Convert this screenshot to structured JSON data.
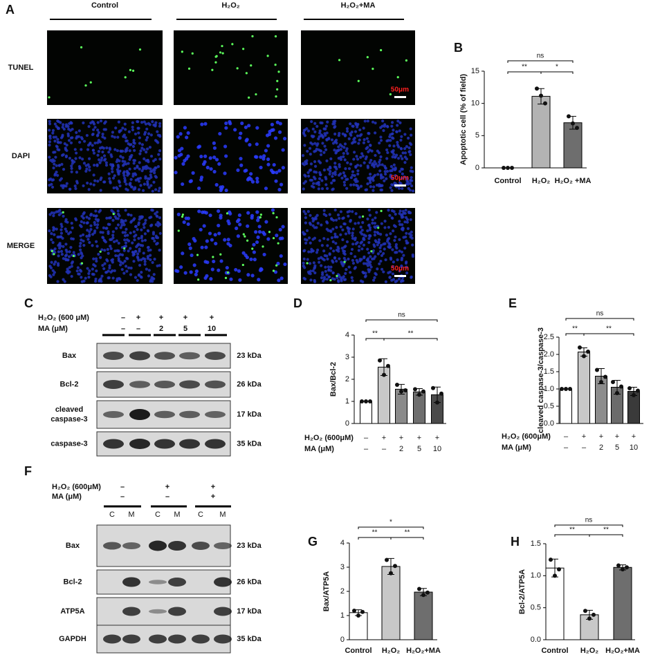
{
  "panel_a": {
    "letter": "A",
    "columns": [
      "Control",
      "H₂O₂",
      "H₂O₂+MA"
    ],
    "rows": [
      "TUNEL",
      "DAPI",
      "MERGE"
    ],
    "scale_bar": "50μm"
  },
  "panel_c": {
    "letter": "C",
    "conditions": [
      {
        "label": "H₂O₂ (600  μM)",
        "values": [
          "–",
          "+",
          "+",
          "+",
          "+"
        ]
      },
      {
        "label": "MA (μM)",
        "values": [
          "–",
          "–",
          "2",
          "5",
          "10"
        ]
      }
    ],
    "bands": [
      {
        "name": [
          "Bax"
        ],
        "size": "23 kDa"
      },
      {
        "name": [
          "Bcl-2"
        ],
        "size": "26 kDa"
      },
      {
        "name": [
          "cleaved",
          "caspase-3"
        ],
        "size": "17 kDa"
      },
      {
        "name": [
          "caspase-3"
        ],
        "size": "35 kDa"
      }
    ]
  },
  "panel_f": {
    "letter": "F",
    "conditions": [
      {
        "label": "H₂O₂  (600μM)",
        "values": [
          "–",
          "+",
          "+"
        ]
      },
      {
        "label": "MA    (μM)",
        "values": [
          "–",
          "–",
          "+"
        ]
      }
    ],
    "lanes": [
      "C",
      "M",
      "C",
      "M",
      "C",
      "M"
    ],
    "bands": [
      {
        "name": [
          "Bax"
        ],
        "size": "23 kDa"
      },
      {
        "name": [
          "Bcl-2"
        ],
        "size": "26 kDa"
      },
      {
        "name": [
          "ATP5A"
        ],
        "size": "17 kDa"
      },
      {
        "name": [
          "GAPDH"
        ],
        "size": "35 kDa"
      }
    ]
  },
  "chart_data": [
    {
      "panel": "B",
      "type": "bar",
      "ylabel": "Apoptotic cell (% of field)",
      "categories": [
        "Control",
        "H₂O₂",
        "H₂O₂ +MA"
      ],
      "values": [
        0,
        11.1,
        7.0
      ],
      "errors": [
        0,
        1.2,
        1.0
      ],
      "points": [
        [
          0,
          0,
          0
        ],
        [
          12.3,
          11.2,
          10.0
        ],
        [
          8.0,
          6.9,
          6.2
        ]
      ],
      "colors": [
        "#ffffff",
        "#b3b3b3",
        "#6e6e6e"
      ],
      "ylim": [
        0,
        15
      ],
      "yticks": [
        0,
        5,
        10,
        15
      ],
      "comparisons": [
        {
          "groups": [
            0,
            1
          ],
          "label": "**"
        },
        {
          "groups": [
            1,
            2
          ],
          "label": "*"
        },
        {
          "groups": [
            0,
            2
          ],
          "label": "ns"
        }
      ]
    },
    {
      "panel": "D",
      "type": "bar",
      "ylabel": "Bax/Bcl-2",
      "conditions": [
        {
          "label": "H₂O₂ (600μM)",
          "values": [
            "–",
            "+",
            "+",
            "+",
            "+"
          ]
        },
        {
          "label": "MA    (μM)",
          "values": [
            "–",
            "–",
            "2",
            "5",
            "10"
          ]
        }
      ],
      "values": [
        1.0,
        2.55,
        1.55,
        1.43,
        1.3
      ],
      "errors": [
        0,
        0.38,
        0.22,
        0.15,
        0.35
      ],
      "points": [
        [
          1.0,
          1.0,
          1.0
        ],
        [
          2.85,
          2.2,
          2.6
        ],
        [
          1.75,
          1.45,
          1.5
        ],
        [
          1.55,
          1.3,
          1.45
        ],
        [
          1.6,
          0.95,
          1.35
        ]
      ],
      "colors": [
        "#ffffff",
        "#c8c8c8",
        "#8a8a8a",
        "#6e6e6e",
        "#4a4a4a"
      ],
      "ylim": [
        0,
        4
      ],
      "yticks": [
        0,
        1,
        2,
        3,
        4
      ],
      "comparisons": [
        {
          "groups": [
            0,
            1
          ],
          "label": "**"
        },
        {
          "groups": [
            1,
            4
          ],
          "label": "**"
        },
        {
          "groups": [
            0,
            4
          ],
          "label": "ns"
        }
      ]
    },
    {
      "panel": "E",
      "type": "bar",
      "ylabel": "cleaved caspase-3/caspase-3",
      "conditions": [
        {
          "label": "H₂O₂  (600μM)",
          "values": [
            "–",
            "+",
            "+",
            "+",
            "+"
          ]
        },
        {
          "label": "MA    (μM)",
          "values": [
            "–",
            "–",
            "2",
            "5",
            "10"
          ]
        }
      ],
      "values": [
        1.0,
        2.07,
        1.37,
        1.05,
        0.93
      ],
      "errors": [
        0,
        0.12,
        0.22,
        0.2,
        0.12
      ],
      "points": [
        [
          1.0,
          1.0,
          1.0
        ],
        [
          2.2,
          1.95,
          2.08
        ],
        [
          1.55,
          1.2,
          1.35
        ],
        [
          1.2,
          0.88,
          1.07
        ],
        [
          1.02,
          0.82,
          0.95
        ]
      ],
      "colors": [
        "#ffffff",
        "#c8c8c8",
        "#8c8c8c",
        "#6b6b6b",
        "#3a3a3a"
      ],
      "ylim": [
        0,
        2.5
      ],
      "yticks": [
        {
          "value": 0,
          "label": "0.0"
        },
        0.5,
        {
          "value": 1,
          "label": "1.0"
        },
        1.5,
        {
          "value": 2,
          "label": "2.0"
        },
        2.5
      ],
      "comparisons": [
        {
          "groups": [
            0,
            1
          ],
          "label": "**"
        },
        {
          "groups": [
            1,
            4
          ],
          "label": "**"
        },
        {
          "groups": [
            0,
            4
          ],
          "label": "ns"
        }
      ]
    },
    {
      "panel": "G",
      "type": "bar",
      "ylabel": "Bax/ATP5A",
      "categories": [
        "Control",
        "H₂O₂",
        "H₂O₂+MA"
      ],
      "values": [
        1.12,
        3.03,
        1.97
      ],
      "errors": [
        0.12,
        0.33,
        0.15
      ],
      "points": [
        [
          1.2,
          1.0,
          1.15
        ],
        [
          3.3,
          2.75,
          3.05
        ],
        [
          2.1,
          1.85,
          1.95
        ]
      ],
      "colors": [
        "#ffffff",
        "#c8c8c8",
        "#6e6e6e"
      ],
      "ylim": [
        0,
        4
      ],
      "yticks": [
        0,
        1,
        2,
        3,
        4
      ],
      "comparisons": [
        {
          "groups": [
            0,
            1
          ],
          "label": "**"
        },
        {
          "groups": [
            1,
            2
          ],
          "label": "**"
        },
        {
          "groups": [
            0,
            2
          ],
          "label": "*"
        }
      ]
    },
    {
      "panel": "H",
      "type": "bar",
      "ylabel": "Bcl-2/ATP5A",
      "categories": [
        "Control",
        "H₂O₂",
        "H₂O₂+MA"
      ],
      "values": [
        1.12,
        0.39,
        1.13
      ],
      "errors": [
        0.14,
        0.07,
        0.04
      ],
      "points": [
        [
          1.25,
          1.0,
          1.1
        ],
        [
          0.45,
          0.33,
          0.39
        ],
        [
          1.16,
          1.1,
          1.13
        ]
      ],
      "colors": [
        "#ffffff",
        "#c8c8c8",
        "#6e6e6e"
      ],
      "ylim": [
        0,
        1.5
      ],
      "yticks": [
        {
          "value": 0,
          "label": "0.0"
        },
        0.5,
        {
          "value": 1,
          "label": "1.0"
        },
        1.5
      ],
      "comparisons": [
        {
          "groups": [
            0,
            1
          ],
          "label": "**"
        },
        {
          "groups": [
            1,
            2
          ],
          "label": "**"
        },
        {
          "groups": [
            0,
            2
          ],
          "label": "ns"
        }
      ]
    }
  ]
}
